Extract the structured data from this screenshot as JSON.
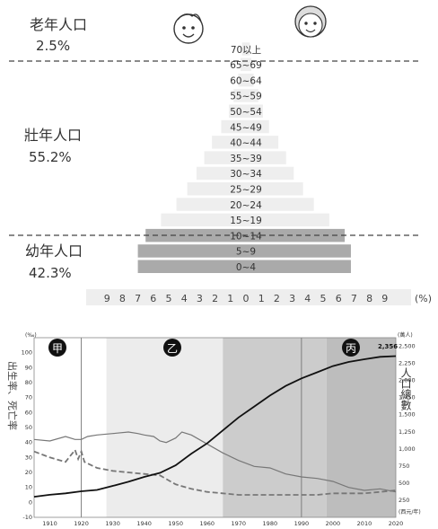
{
  "pyramid": {
    "groups": [
      {
        "label": "老年人口",
        "pct": "2.5%"
      },
      {
        "label": "壯年人口",
        "pct": "55.2%"
      },
      {
        "label": "幼年人口",
        "pct": "42.3%"
      }
    ],
    "unit": "(%)",
    "tick_labels": [
      "9",
      "8",
      "7",
      "6",
      "5",
      "4",
      "3",
      "2",
      "1",
      "0",
      "1",
      "2",
      "3",
      "4",
      "5",
      "6",
      "7",
      "8",
      "9"
    ]
  },
  "trend": {
    "era_labels": [
      "甲",
      "乙",
      "丙"
    ],
    "left_axis_title": "出生率、死亡率",
    "left_axis_unit": "(‰)",
    "right_axis_title": "人口總數",
    "right_axis_unit": "(萬人)",
    "x_axis_unit": "(西元/年)",
    "peak_label": "2,356",
    "left_ticks": [
      "100",
      "90",
      "80",
      "70",
      "60",
      "50",
      "40",
      "30",
      "20",
      "10",
      "0",
      "-10"
    ],
    "right_ticks": [
      "2,500",
      "2,250",
      "2,000",
      "1,750",
      "1,500",
      "1,250",
      "1,000",
      "750",
      "500",
      "250"
    ],
    "x_ticks": [
      "1910",
      "1920",
      "1930",
      "1940",
      "1950",
      "1960",
      "1970",
      "1980",
      "1990",
      "2000",
      "2010",
      "2020"
    ]
  },
  "chart_data": [
    {
      "type": "bar",
      "orientation": "horizontal-pyramid",
      "categories": [
        "0~4",
        "5~9",
        "10~14",
        "15~19",
        "20~24",
        "25~29",
        "30~34",
        "35~39",
        "40~44",
        "45~49",
        "50~54",
        "55~59",
        "60~64",
        "65~69",
        "70以上"
      ],
      "series": [
        {
          "values": [
            7.0,
            7.0,
            6.5,
            5.5,
            4.5,
            3.8,
            3.2,
            2.7,
            2.2,
            1.6,
            1.1,
            0.8,
            0.5,
            0.35,
            0.25
          ]
        },
        {
          "values": [
            6.8,
            6.8,
            6.4,
            5.4,
            4.4,
            3.7,
            3.1,
            2.6,
            2.1,
            1.5,
            1.1,
            0.8,
            0.5,
            0.35,
            0.25
          ]
        }
      ],
      "xlim": [
        -9,
        9
      ],
      "shading": {
        "youth": "#aaaaaa",
        "adult": "#eeeeee",
        "elderly": "#eeeeee"
      }
    },
    {
      "type": "line",
      "x_range": [
        1905,
        2020
      ],
      "y_left_range": [
        -10,
        110
      ],
      "y_right_range": [
        0,
        2625
      ],
      "series": [
        {
          "style": "solid-thin-gray",
          "axis": "left",
          "x": [
            1905,
            1910,
            1915,
            1918,
            1920,
            1922,
            1925,
            1930,
            1935,
            1938,
            1940,
            1943,
            1945,
            1947,
            1950,
            1952,
            1955,
            1960,
            1965,
            1970,
            1975,
            1980,
            1985,
            1990,
            1995,
            2000,
            2005,
            2010,
            2015,
            2020
          ],
          "y": [
            42,
            41,
            44,
            42,
            42,
            44,
            45,
            46,
            47,
            46,
            45,
            44,
            41,
            40,
            43,
            47,
            45,
            39,
            33,
            28,
            24,
            23,
            19,
            17,
            16,
            14,
            10,
            8,
            9,
            7
          ]
        },
        {
          "style": "dashed-gray",
          "axis": "left",
          "x": [
            1905,
            1910,
            1915,
            1918,
            1919,
            1920,
            1921,
            1923,
            1925,
            1930,
            1935,
            1940,
            1945,
            1950,
            1955,
            1960,
            1965,
            1970,
            1975,
            1980,
            1985,
            1990,
            1995,
            2000,
            2005,
            2010,
            2015,
            2020
          ],
          "y": [
            34,
            30,
            27,
            35,
            29,
            34,
            27,
            25,
            23,
            21,
            20,
            19,
            18,
            12,
            9,
            7,
            6,
            5,
            5,
            5,
            5,
            5,
            5,
            6,
            6,
            6,
            7,
            8
          ]
        },
        {
          "style": "solid-black",
          "axis": "right",
          "x": [
            1905,
            1910,
            1915,
            1920,
            1925,
            1930,
            1935,
            1940,
            1945,
            1950,
            1955,
            1960,
            1965,
            1970,
            1975,
            1980,
            1985,
            1990,
            1995,
            2000,
            2005,
            2010,
            2015,
            2020
          ],
          "y": [
            300,
            330,
            350,
            380,
            400,
            460,
            520,
            590,
            650,
            760,
            930,
            1080,
            1270,
            1460,
            1620,
            1780,
            1920,
            2030,
            2120,
            2210,
            2270,
            2310,
            2345,
            2356
          ]
        }
      ],
      "shaded_eras": [
        {
          "from": 1928,
          "to": 1965,
          "color": "#ececec"
        },
        {
          "from": 1965,
          "to": 1998,
          "color": "#cccccc"
        },
        {
          "from": 1998,
          "to": 2020,
          "color": "#bdbdbd"
        }
      ],
      "reference_lines": [
        1920,
        1990
      ]
    }
  ]
}
